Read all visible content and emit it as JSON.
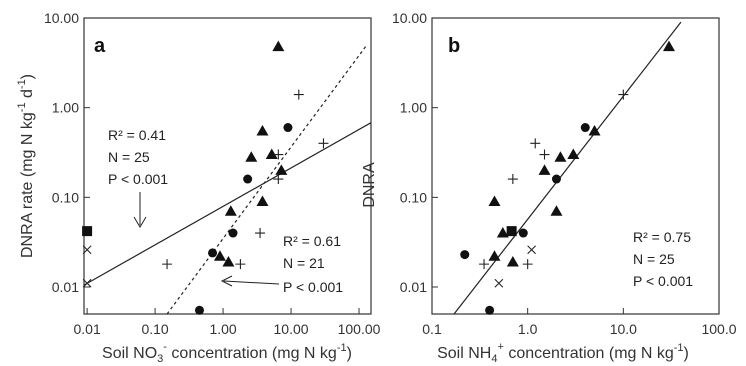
{
  "chart_data": [
    {
      "type": "scatter",
      "panel_label": "a",
      "xlabel": "Soil NO₃⁻ concentration (mg N kg⁻¹)",
      "xlabel_parts": {
        "pre": "Soil NO",
        "sub": "3",
        "sup": "-",
        "post": " concentration (mg N kg",
        "sup2": "-1",
        "end": ")"
      },
      "ylabel": "DNRA rate (mg N kg⁻¹ d⁻¹)",
      "ylabel_parts": {
        "pre": "DNRA rate (mg N kg",
        "sup": "-1",
        "mid": " d",
        "sup2": "-1",
        "end": ")"
      },
      "x_scale": "log",
      "y_scale": "log",
      "xlim": [
        0.009,
        150
      ],
      "ylim": [
        0.005,
        10
      ],
      "x_ticks": [
        0.01,
        0.1,
        1,
        10,
        100
      ],
      "x_tick_labels": [
        "0.01",
        "0.10",
        "1.00",
        "10.00",
        "100.00"
      ],
      "y_ticks": [
        0.01,
        0.1,
        1,
        10
      ],
      "y_tick_labels": [
        "0.01",
        "0.10",
        "1.00",
        "10.00"
      ],
      "series": [
        {
          "marker": "triangle",
          "points": [
            [
              6.5,
              4.8
            ],
            [
              3.8,
              0.55
            ],
            [
              2.6,
              0.28
            ],
            [
              5.2,
              0.3
            ],
            [
              7.2,
              0.2
            ],
            [
              1.3,
              0.07
            ],
            [
              3.8,
              0.09
            ],
            [
              0.9,
              0.022
            ],
            [
              1.2,
              0.019
            ]
          ]
        },
        {
          "marker": "circle",
          "points": [
            [
              9,
              0.6
            ],
            [
              2.3,
              0.16
            ],
            [
              1.4,
              0.04
            ],
            [
              0.7,
              0.024
            ],
            [
              0.45,
              0.0055
            ]
          ]
        },
        {
          "marker": "plus",
          "points": [
            [
              13,
              1.4
            ],
            [
              30,
              0.4
            ],
            [
              6.5,
              0.3
            ],
            [
              6.5,
              0.16
            ],
            [
              3.5,
              0.04
            ],
            [
              1.8,
              0.018
            ],
            [
              0.15,
              0.018
            ]
          ]
        },
        {
          "marker": "cross",
          "points": [
            [
              0.01,
              0.026
            ],
            [
              0.01,
              0.011
            ]
          ]
        },
        {
          "marker": "square",
          "points": [
            [
              0.01,
              0.042
            ]
          ]
        }
      ],
      "fits": [
        {
          "style": "solid",
          "from": [
            0.009,
            0.0105
          ],
          "to": [
            150,
            0.68
          ]
        },
        {
          "style": "dashed",
          "from": [
            0.15,
            0.005
          ],
          "to": [
            125,
            4.8
          ]
        }
      ],
      "annotations": [
        {
          "lines": [
            "R² = 0.41",
            "N = 25",
            "P < 0.001"
          ]
        },
        {
          "lines": [
            "R² = 0.61",
            "N = 21",
            "P < 0.001"
          ]
        }
      ]
    },
    {
      "type": "scatter",
      "panel_label": "b",
      "xlabel": "Soil NH₄⁺ concentration (mg N kg⁻¹)",
      "xlabel_parts": {
        "pre": "Soil NH",
        "sub": "4",
        "sup": "+",
        "post": " concentration (mg N kg",
        "sup2": "-1",
        "end": ")"
      },
      "ylabel": "DNRA",
      "x_scale": "log",
      "y_scale": "log",
      "xlim": [
        0.1,
        100
      ],
      "ylim": [
        0.005,
        10
      ],
      "x_ticks": [
        0.1,
        1,
        10,
        100
      ],
      "x_tick_labels": [
        "0.1",
        "1.0",
        "10.0",
        "100.0"
      ],
      "y_ticks": [
        0.01,
        0.1,
        1,
        10
      ],
      "y_tick_labels": [
        "0.01",
        "0.10",
        "1.00",
        "10.00"
      ],
      "series": [
        {
          "marker": "triangle",
          "points": [
            [
              30,
              4.8
            ],
            [
              5,
              0.55
            ],
            [
              3,
              0.3
            ],
            [
              2.2,
              0.28
            ],
            [
              1.5,
              0.2
            ],
            [
              2,
              0.07
            ],
            [
              0.45,
              0.09
            ],
            [
              0.55,
              0.04
            ],
            [
              0.45,
              0.022
            ],
            [
              0.7,
              0.019
            ]
          ]
        },
        {
          "marker": "circle",
          "points": [
            [
              4,
              0.6
            ],
            [
              2,
              0.16
            ],
            [
              0.9,
              0.04
            ],
            [
              0.22,
              0.023
            ],
            [
              0.4,
              0.0055
            ]
          ]
        },
        {
          "marker": "plus",
          "points": [
            [
              10,
              1.4
            ],
            [
              1.2,
              0.4
            ],
            [
              1.5,
              0.3
            ],
            [
              0.7,
              0.16
            ],
            [
              0.35,
              0.018
            ],
            [
              1,
              0.018
            ]
          ]
        },
        {
          "marker": "cross",
          "points": [
            [
              1.1,
              0.026
            ],
            [
              0.5,
              0.011
            ]
          ]
        },
        {
          "marker": "square",
          "points": [
            [
              0.68,
              0.042
            ]
          ]
        }
      ],
      "fits": [
        {
          "style": "solid",
          "from": [
            0.17,
            0.005
          ],
          "to": [
            40,
            9
          ]
        }
      ],
      "annotations": [
        {
          "lines": [
            "R² = 0.75",
            "N = 25",
            "P < 0.001"
          ]
        }
      ]
    }
  ]
}
